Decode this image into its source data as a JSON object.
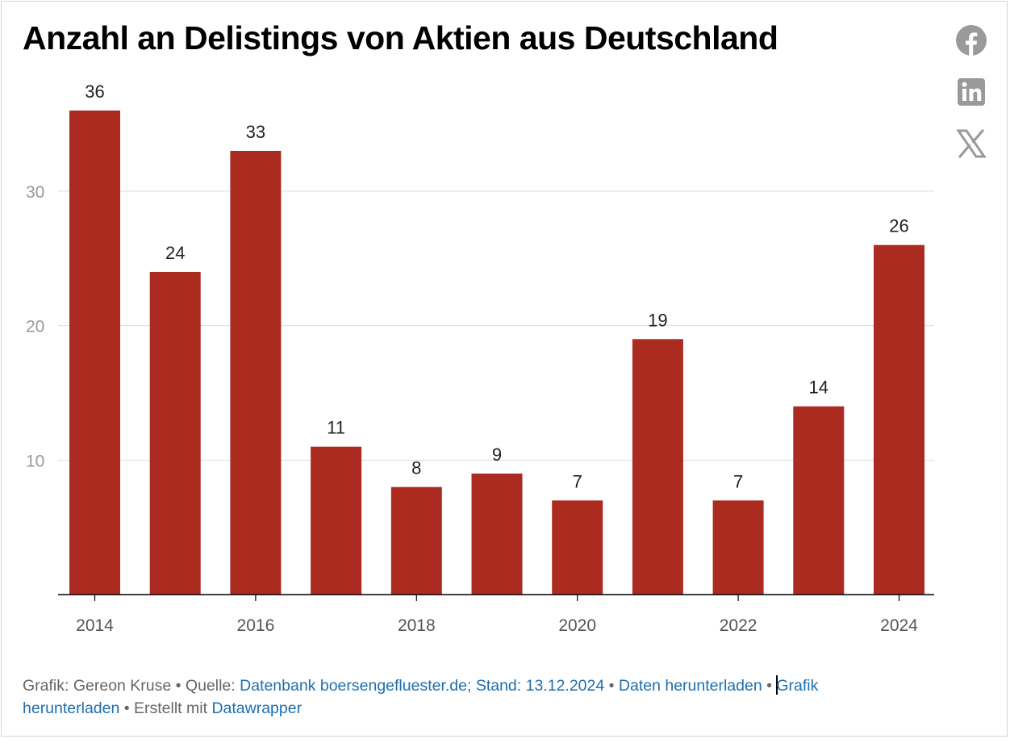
{
  "title": "Anzahl an Delistings von Aktien aus Deutschland",
  "share_icons": [
    "facebook-icon",
    "linkedin-icon",
    "x-icon"
  ],
  "colors": {
    "bar": "#ab2b21",
    "grid": "#dddddd",
    "axis": "#000000",
    "tick_text": "#999999",
    "xtick_text": "#555555",
    "link": "#1d6fb0"
  },
  "chart_data": {
    "type": "bar",
    "categories": [
      "2014",
      "2015",
      "2016",
      "2017",
      "2018",
      "2019",
      "2020",
      "2021",
      "2022",
      "2023",
      "2024"
    ],
    "values": [
      36,
      24,
      33,
      11,
      8,
      9,
      7,
      19,
      7,
      14,
      26
    ],
    "x_tick_labels": [
      "2014",
      "2016",
      "2018",
      "2020",
      "2022",
      "2024"
    ],
    "y_ticks": [
      10,
      20,
      30
    ],
    "ylim": [
      0,
      36
    ],
    "grid": true,
    "xlabel": "",
    "ylabel": ""
  },
  "footer": {
    "grafik_prefix": "Grafik: Gereon Kruse • Quelle: ",
    "source_link": "Datenbank boersengefluester.de; Stand: 13.12.2024",
    "sep1": " • ",
    "download_data": "Daten herunterladen",
    "sep2": " • ",
    "download_graphic": "Grafik herunterladen",
    "created_with": " • Erstellt mit ",
    "datawrapper": "Datawrapper"
  }
}
